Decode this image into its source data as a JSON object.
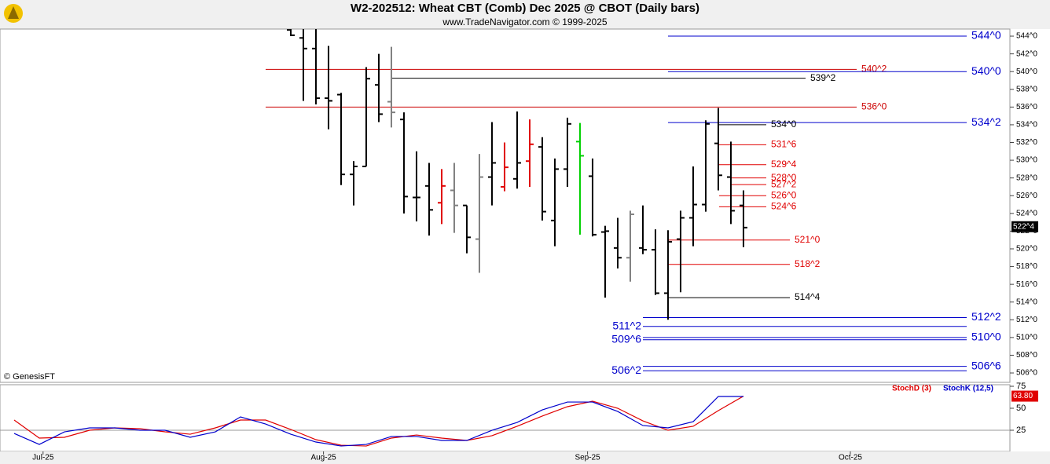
{
  "chart_data": [
    {
      "type": "ohlc",
      "title": "W2-202512:  Wheat CBT (Comb) Dec 2025 @ CBOT  (Daily bars)",
      "subtitle": "www.TradeNavigator.com © 1999-2025",
      "credit": "© GenesisFT",
      "x": [
        0,
        1,
        2,
        3,
        4,
        5,
        6,
        7,
        8,
        9,
        10,
        11,
        12,
        13,
        14,
        15,
        16,
        17,
        18,
        19,
        20,
        21,
        22,
        23,
        24,
        25,
        26,
        27,
        28,
        29,
        30,
        31,
        32,
        33,
        34,
        35,
        36
      ],
      "open": [
        544.7,
        543.8,
        542.6,
        537.0,
        537.4,
        528.4,
        529.3,
        538.5,
        536.6,
        534.6,
        525.8,
        527.1,
        525.2,
        526.6,
        524.9,
        521.1,
        528.1,
        527.0,
        527.9,
        529.9,
        531.5,
        523.2,
        529.0,
        532.1,
        528.2,
        521.9,
        520.1,
        519.0,
        520.1,
        519.9,
        515.0,
        521.1,
        523.5,
        525.0,
        531.9,
        528.1,
        524.9
      ],
      "high": [
        544.8,
        544.8,
        544.8,
        542.9,
        537.6,
        529.9,
        540.5,
        542.0,
        542.8,
        535.4,
        531.0,
        529.7,
        529.0,
        529.7,
        524.9,
        530.7,
        534.3,
        532.0,
        535.5,
        534.6,
        532.6,
        530.2,
        534.8,
        534.2,
        530.2,
        522.6,
        523.5,
        524.3,
        524.9,
        522.2,
        522.1,
        524.3,
        529.3,
        534.5,
        535.9,
        532.1,
        526.6
      ],
      "low": [
        544.0,
        536.7,
        536.3,
        533.5,
        527.2,
        524.9,
        529.3,
        534.3,
        533.7,
        524.0,
        523.1,
        521.5,
        522.8,
        521.8,
        519.5,
        517.3,
        524.9,
        526.5,
        526.8,
        527.0,
        523.2,
        520.3,
        527.0,
        521.6,
        521.4,
        514.5,
        517.8,
        516.3,
        519.4,
        514.8,
        512.0,
        515.1,
        520.3,
        524.2,
        526.6,
        522.8,
        520.2
      ],
      "close": [
        544.1,
        542.6,
        537.0,
        536.7,
        528.4,
        529.3,
        539.2,
        535.2,
        535.4,
        525.9,
        525.8,
        524.4,
        527.1,
        524.9,
        521.3,
        528.1,
        529.7,
        529.2,
        529.7,
        531.8,
        524.2,
        529.0,
        534.1,
        530.5,
        521.6,
        522.0,
        519.0,
        523.9,
        519.9,
        515.0,
        520.8,
        523.5,
        525.0,
        534.1,
        528.3,
        524.3,
        522.4
      ],
      "bar_colors": [
        "#000000",
        "#000000",
        "#000000",
        "#000000",
        "#000000",
        "#000000",
        "#000000",
        "#000000",
        "#808080",
        "#000000",
        "#000000",
        "#000000",
        "#e00000",
        "#808080",
        "#000000",
        "#808080",
        "#000000",
        "#e00000",
        "#000000",
        "#e00000",
        "#000000",
        "#000000",
        "#000000",
        "#00d000",
        "#000000",
        "#000000",
        "#000000",
        "#808080",
        "#000000",
        "#000000",
        "#000000",
        "#000000",
        "#000000",
        "#000000",
        "#000000",
        "#000000",
        "#000000"
      ],
      "xlim": [
        -23.125,
        57.19
      ],
      "xticks": [
        {
          "value": -19.7,
          "label": "Jul-25"
        },
        {
          "value": 2.6,
          "label": "Aug-25"
        },
        {
          "value": 23.6,
          "label": "Sep-25"
        },
        {
          "value": 44.5,
          "label": "Oct-25"
        }
      ],
      "ylim": [
        504.94,
        544.8
      ],
      "yticks": [
        {
          "value": 506,
          "label": "506^0"
        },
        {
          "value": 508,
          "label": "508^0"
        },
        {
          "value": 510,
          "label": "510^0"
        },
        {
          "value": 512,
          "label": "512^0"
        },
        {
          "value": 514,
          "label": "514^0"
        },
        {
          "value": 516,
          "label": "516^0"
        },
        {
          "value": 518,
          "label": "518^0"
        },
        {
          "value": 520,
          "label": "520^0"
        },
        {
          "value": 522,
          "label": "522^0"
        },
        {
          "value": 524,
          "label": "524^0"
        },
        {
          "value": 526,
          "label": "526^0"
        },
        {
          "value": 528,
          "label": "528^0"
        },
        {
          "value": 530,
          "label": "530^0"
        },
        {
          "value": 532,
          "label": "532^0"
        },
        {
          "value": 534,
          "label": "534^0"
        },
        {
          "value": 536,
          "label": "536^0"
        },
        {
          "value": 538,
          "label": "538^0"
        },
        {
          "value": 540,
          "label": "540^0"
        },
        {
          "value": 542,
          "label": "542^0"
        },
        {
          "value": 544,
          "label": "544^0"
        }
      ],
      "levels": [
        {
          "label": "544^0",
          "value": 544,
          "color": "#0000cc"
        },
        {
          "label": "540^2",
          "value": 540.25,
          "color": "#cc0000"
        },
        {
          "label": "540^0",
          "value": 540,
          "color": "#0000cc"
        },
        {
          "label": "539^2",
          "value": 539.25,
          "color": "#000000"
        },
        {
          "label": "536^0",
          "value": 536,
          "color": "#cc0000"
        },
        {
          "label": "534^2",
          "value": 534.25,
          "color": "#0000cc"
        },
        {
          "label": "534^0",
          "value": 534,
          "color": "#000000"
        },
        {
          "label": "531^6",
          "value": 531.75,
          "color": "#e00000"
        },
        {
          "label": "529^4",
          "value": 529.5,
          "color": "#e00000"
        },
        {
          "label": "528^0",
          "value": 528,
          "color": "#e00000"
        },
        {
          "label": "527^2",
          "value": 527.25,
          "color": "#e00000"
        },
        {
          "label": "526^0",
          "value": 526,
          "color": "#e00000"
        },
        {
          "label": "524^6",
          "value": 524.75,
          "color": "#e00000"
        },
        {
          "label": "521^0",
          "value": 521,
          "color": "#e00000"
        },
        {
          "label": "518^2",
          "value": 518.25,
          "color": "#e00000"
        },
        {
          "label": "514^4",
          "value": 514.5,
          "color": "#000000"
        },
        {
          "label": "512^2",
          "value": 512.25,
          "color": "#0000cc"
        },
        {
          "label": "511^2",
          "value": 511.25,
          "color": "#0000cc"
        },
        {
          "label": "510^0",
          "value": 510,
          "color": "#0000cc"
        },
        {
          "label": "509^6",
          "value": 509.75,
          "color": "#0000cc"
        },
        {
          "label": "506^6",
          "value": 506.75,
          "color": "#0000cc"
        },
        {
          "label": "506^2",
          "value": 506.25,
          "color": "#0000cc"
        }
      ],
      "last_label": "522^4",
      "last_value": 522.5
    },
    {
      "type": "line",
      "x": [
        -22,
        -20,
        -18,
        -16,
        -14,
        -12,
        -10,
        -8,
        -6,
        -4,
        -2,
        0,
        2,
        4,
        6,
        8,
        10,
        12,
        14,
        16,
        18,
        20,
        22,
        24,
        26,
        28,
        30,
        32,
        34,
        36
      ],
      "series": [
        {
          "name": "StochD (3)",
          "color": "#e00000",
          "values": [
            36.6,
            16.1,
            17,
            25,
            27.7,
            26.8,
            23.2,
            20.5,
            27.7,
            36.6,
            36.6,
            25.9,
            14.3,
            8,
            7.1,
            16.1,
            19.6,
            16.1,
            13.4,
            18.8,
            29.5,
            41.1,
            51.8,
            58,
            50,
            35.7,
            25,
            29.5,
            47.3,
            63.8
          ],
          "last_label": "63.80"
        },
        {
          "name": "StochK (12,5)",
          "color": "#0000cc",
          "values": [
            21.4,
            8.9,
            23.2,
            27.7,
            27.7,
            25,
            25,
            17,
            23.2,
            40.2,
            32.1,
            20.5,
            11.6,
            7.1,
            8.9,
            17.9,
            17.9,
            13.4,
            13.4,
            25,
            33.9,
            48.2,
            57.1,
            57.1,
            46.4,
            30.4,
            27.7,
            34.8,
            63.4,
            63.4
          ]
        }
      ],
      "ylim": [
        0.9,
        76.8
      ],
      "yticks": [
        25,
        50,
        75
      ],
      "grid": [
        25
      ]
    }
  ]
}
